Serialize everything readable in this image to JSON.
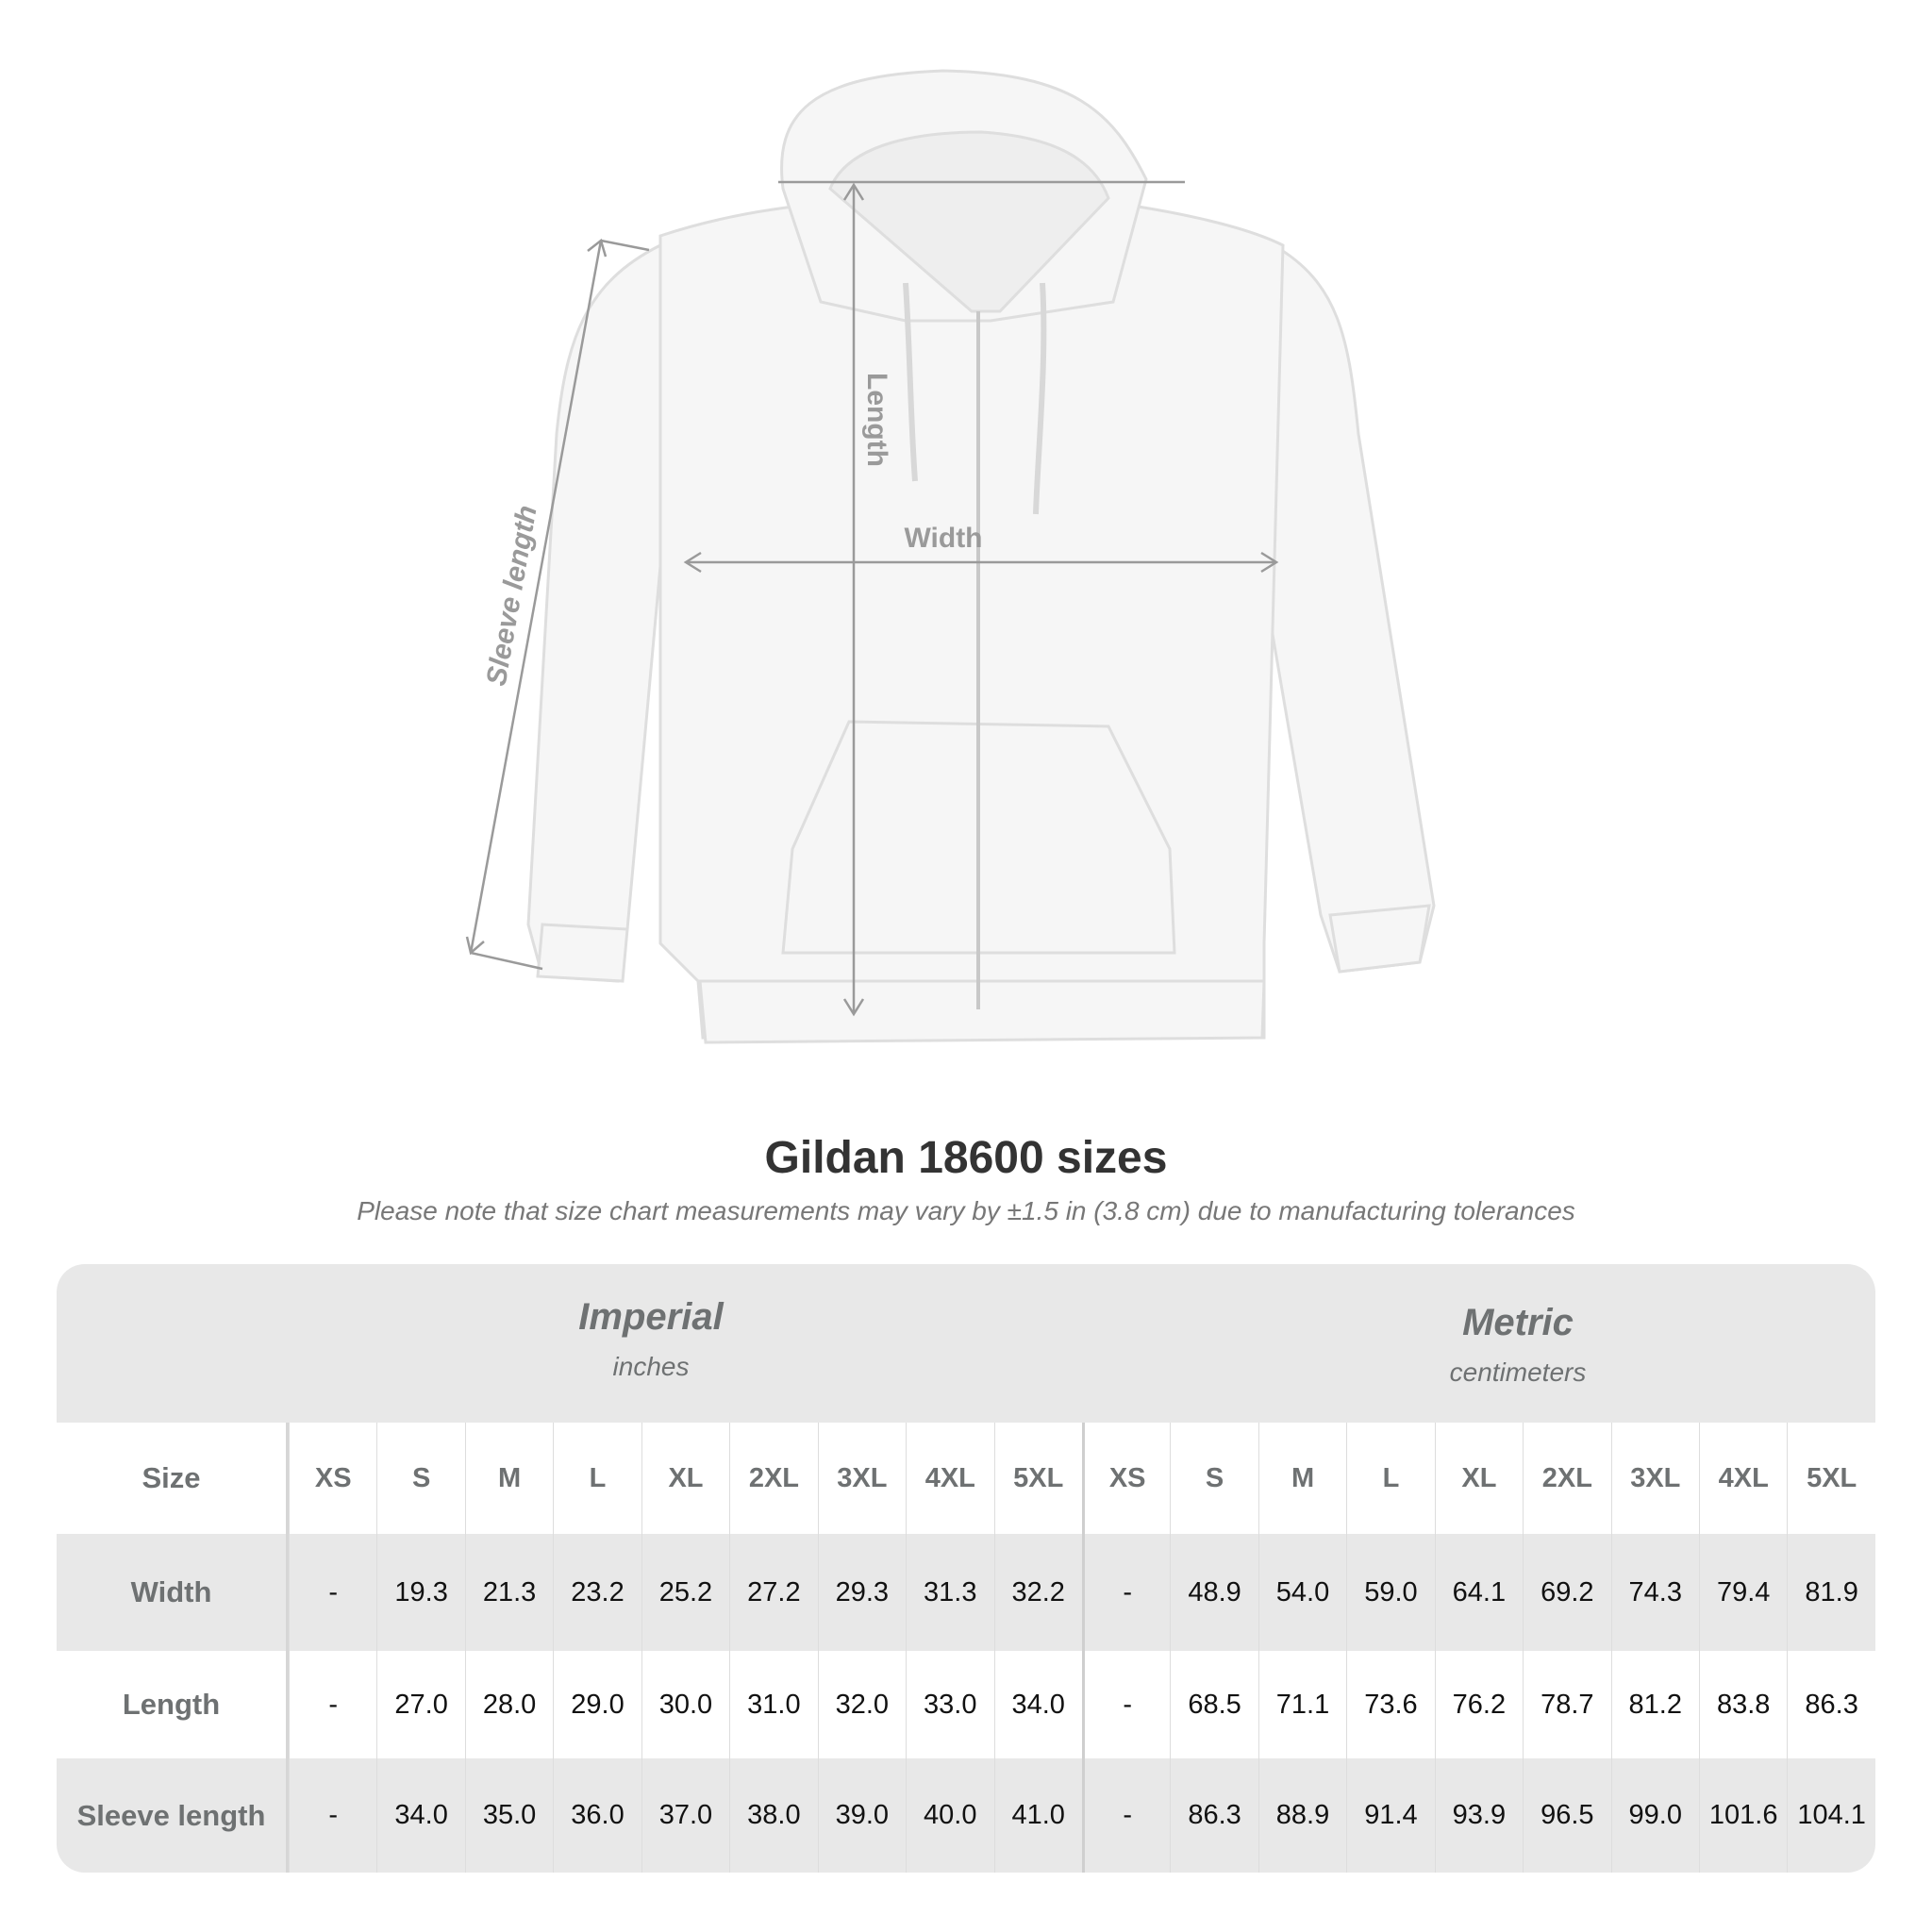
{
  "diagram": {
    "labels": {
      "length": "Length",
      "width": "Width",
      "sleeve": "Sleeve length"
    },
    "garment_color": "#f5f5f5",
    "measure_color": "#9a9a9a"
  },
  "title": "Gildan 18600 sizes",
  "subtitle": "Please note that size chart measurements may vary by ±1.5 in (3.8 cm) due to manufacturing tolerances",
  "table": {
    "imperial": {
      "name": "Imperial",
      "unit": "inches"
    },
    "metric": {
      "name": "Metric",
      "unit": "centimeters"
    },
    "size_label": "Size",
    "sizes": [
      "XS",
      "S",
      "M",
      "L",
      "XL",
      "2XL",
      "3XL",
      "4XL",
      "5XL"
    ],
    "rows": [
      {
        "label": "Width",
        "imperial": [
          "-",
          "19.3",
          "21.3",
          "23.2",
          "25.2",
          "27.2",
          "29.3",
          "31.3",
          "32.2"
        ],
        "metric": [
          "-",
          "48.9",
          "54.0",
          "59.0",
          "64.1",
          "69.2",
          "74.3",
          "79.4",
          "81.9"
        ]
      },
      {
        "label": "Length",
        "imperial": [
          "-",
          "27.0",
          "28.0",
          "29.0",
          "30.0",
          "31.0",
          "32.0",
          "33.0",
          "34.0"
        ],
        "metric": [
          "-",
          "68.5",
          "71.1",
          "73.6",
          "76.2",
          "78.7",
          "81.2",
          "83.8",
          "86.3"
        ]
      },
      {
        "label": "Sleeve length",
        "imperial": [
          "-",
          "34.0",
          "35.0",
          "36.0",
          "37.0",
          "38.0",
          "39.0",
          "40.0",
          "41.0"
        ],
        "metric": [
          "-",
          "86.3",
          "88.9",
          "91.4",
          "93.9",
          "96.5",
          "99.0",
          "101.6",
          "104.1"
        ]
      }
    ]
  }
}
